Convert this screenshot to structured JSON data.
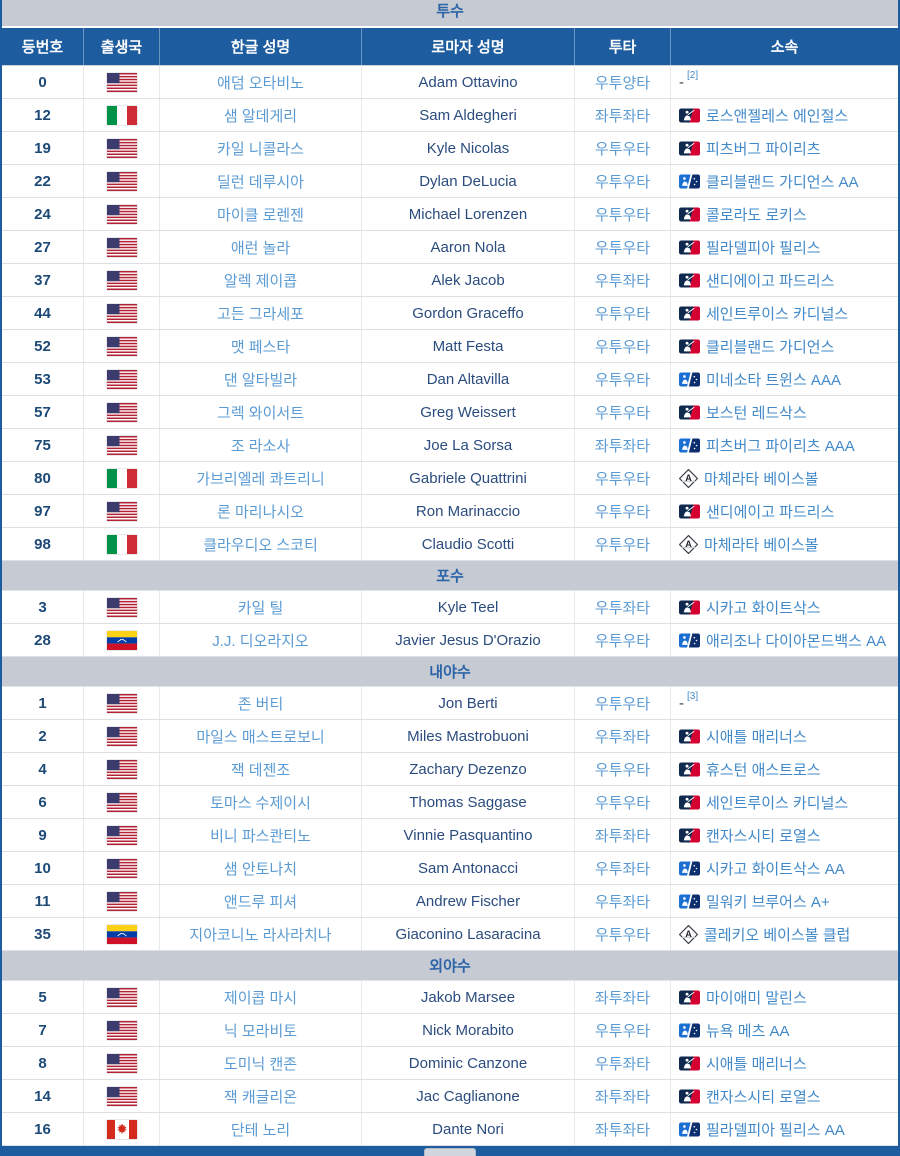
{
  "colors": {
    "accent": "#1d5c9f",
    "section_bg": "#c5cad3",
    "section_text": "#2d64a8",
    "link_light": "#5b9bd3",
    "link_affiliation": "#4289c9",
    "roman_text": "#2b4c7e",
    "number_text": "#1c4976"
  },
  "columns": [
    "등번호",
    "출생국",
    "한글 성명",
    "로마자 성명",
    "투타",
    "소속"
  ],
  "sections": [
    {
      "id": "pitchers",
      "label": "투수",
      "rows": [
        {
          "number": "0",
          "country": "us",
          "kor": "애덤 오타비노",
          "rom": "Adam Ottavino",
          "hand": "우투양타",
          "aff_logo": "none",
          "aff": "-",
          "footnote": "[2]"
        },
        {
          "number": "12",
          "country": "it",
          "kor": "샘 알데게리",
          "rom": "Sam Aldegheri",
          "hand": "좌투좌타",
          "aff_logo": "mlb",
          "aff": "로스앤젤레스 에인절스",
          "footnote": ""
        },
        {
          "number": "19",
          "country": "us",
          "kor": "카일 니콜라스",
          "rom": "Kyle Nicolas",
          "hand": "우투우타",
          "aff_logo": "mlb",
          "aff": "피츠버그 파이리츠",
          "footnote": ""
        },
        {
          "number": "22",
          "country": "us",
          "kor": "딜런 데루시아",
          "rom": "Dylan DeLucia",
          "hand": "우투우타",
          "aff_logo": "milb",
          "aff": "클리블랜드 가디언스 AA",
          "footnote": ""
        },
        {
          "number": "24",
          "country": "us",
          "kor": "마이클 로렌젠",
          "rom": "Michael Lorenzen",
          "hand": "우투우타",
          "aff_logo": "mlb",
          "aff": "콜로라도 로키스",
          "footnote": ""
        },
        {
          "number": "27",
          "country": "us",
          "kor": "애런 놀라",
          "rom": "Aaron Nola",
          "hand": "우투우타",
          "aff_logo": "mlb",
          "aff": "필라델피아 필리스",
          "footnote": ""
        },
        {
          "number": "37",
          "country": "us",
          "kor": "알렉 제이콥",
          "rom": "Alek Jacob",
          "hand": "우투좌타",
          "aff_logo": "mlb",
          "aff": "샌디에이고 파드리스",
          "footnote": ""
        },
        {
          "number": "44",
          "country": "us",
          "kor": "고든 그라세포",
          "rom": "Gordon Graceffo",
          "hand": "우투우타",
          "aff_logo": "mlb",
          "aff": "세인트루이스 카디널스",
          "footnote": ""
        },
        {
          "number": "52",
          "country": "us",
          "kor": "맷 페스타",
          "rom": "Matt Festa",
          "hand": "우투우타",
          "aff_logo": "mlb",
          "aff": "클리블랜드 가디언스",
          "footnote": ""
        },
        {
          "number": "53",
          "country": "us",
          "kor": "댄 알타빌라",
          "rom": "Dan Altavilla",
          "hand": "우투우타",
          "aff_logo": "milb",
          "aff": "미네소타 트윈스 AAA",
          "footnote": ""
        },
        {
          "number": "57",
          "country": "us",
          "kor": "그렉 와이서트",
          "rom": "Greg Weissert",
          "hand": "우투우타",
          "aff_logo": "mlb",
          "aff": "보스턴 레드삭스",
          "footnote": ""
        },
        {
          "number": "75",
          "country": "us",
          "kor": "조 라소사",
          "rom": "Joe La Sorsa",
          "hand": "좌투좌타",
          "aff_logo": "milb",
          "aff": "피츠버그 파이리츠 AAA",
          "footnote": ""
        },
        {
          "number": "80",
          "country": "it",
          "kor": "가브리엘레 콰트리니",
          "rom": "Gabriele Quattrini",
          "hand": "우투우타",
          "aff_logo": "club",
          "aff": "마체라타 베이스볼",
          "footnote": ""
        },
        {
          "number": "97",
          "country": "us",
          "kor": "론 마리나시오",
          "rom": "Ron Marinaccio",
          "hand": "우투우타",
          "aff_logo": "mlb",
          "aff": "샌디에이고 파드리스",
          "footnote": ""
        },
        {
          "number": "98",
          "country": "it",
          "kor": "클라우디오 스코티",
          "rom": "Claudio Scotti",
          "hand": "우투우타",
          "aff_logo": "club",
          "aff": "마체라타 베이스볼",
          "footnote": ""
        }
      ]
    },
    {
      "id": "catchers",
      "label": "포수",
      "rows": [
        {
          "number": "3",
          "country": "us",
          "kor": "카일 틸",
          "rom": "Kyle Teel",
          "hand": "우투좌타",
          "aff_logo": "mlb",
          "aff": "시카고 화이트삭스",
          "footnote": ""
        },
        {
          "number": "28",
          "country": "ve",
          "kor": "J.J. 디오라지오",
          "rom": "Javier Jesus D'Orazio",
          "hand": "우투우타",
          "aff_logo": "milb",
          "aff": "애리조나 다이아몬드백스 AA",
          "footnote": ""
        }
      ]
    },
    {
      "id": "infielders",
      "label": "내야수",
      "rows": [
        {
          "number": "1",
          "country": "us",
          "kor": "존 버티",
          "rom": "Jon Berti",
          "hand": "우투우타",
          "aff_logo": "none",
          "aff": "-",
          "footnote": "[3]"
        },
        {
          "number": "2",
          "country": "us",
          "kor": "마일스 매스트로보니",
          "rom": "Miles Mastrobuoni",
          "hand": "우투좌타",
          "aff_logo": "mlb",
          "aff": "시애틀 매리너스",
          "footnote": ""
        },
        {
          "number": "4",
          "country": "us",
          "kor": "잭 데젠조",
          "rom": "Zachary Dezenzo",
          "hand": "우투우타",
          "aff_logo": "mlb",
          "aff": "휴스턴 애스트로스",
          "footnote": ""
        },
        {
          "number": "6",
          "country": "us",
          "kor": "토마스 수제이시",
          "rom": "Thomas Saggase",
          "hand": "우투우타",
          "aff_logo": "mlb",
          "aff": "세인트루이스 카디널스",
          "footnote": ""
        },
        {
          "number": "9",
          "country": "us",
          "kor": "비니 파스콴티노",
          "rom": "Vinnie Pasquantino",
          "hand": "좌투좌타",
          "aff_logo": "mlb",
          "aff": "캔자스시티 로열스",
          "footnote": ""
        },
        {
          "number": "10",
          "country": "us",
          "kor": "샘 안토나치",
          "rom": "Sam Antonacci",
          "hand": "우투좌타",
          "aff_logo": "milb",
          "aff": "시카고 화이트삭스 AA",
          "footnote": ""
        },
        {
          "number": "11",
          "country": "us",
          "kor": "앤드루 피셔",
          "rom": "Andrew Fischer",
          "hand": "우투좌타",
          "aff_logo": "milb",
          "aff": "밀워키 브루어스 A+",
          "footnote": ""
        },
        {
          "number": "35",
          "country": "ve",
          "kor": "지아코니노 라사라치나",
          "rom": "Giaconino Lasaracina",
          "hand": "우투우타",
          "aff_logo": "club",
          "aff": "콜레키오 베이스볼 클럽",
          "footnote": ""
        }
      ]
    },
    {
      "id": "outfielders",
      "label": "외야수",
      "rows": [
        {
          "number": "5",
          "country": "us",
          "kor": "제이콥 마시",
          "rom": "Jakob Marsee",
          "hand": "좌투좌타",
          "aff_logo": "mlb",
          "aff": "마이애미 말린스",
          "footnote": ""
        },
        {
          "number": "7",
          "country": "us",
          "kor": "닉 모라비토",
          "rom": "Nick Morabito",
          "hand": "우투우타",
          "aff_logo": "milb",
          "aff": "뉴욕 메츠 AA",
          "footnote": ""
        },
        {
          "number": "8",
          "country": "us",
          "kor": "도미닉 캔존",
          "rom": "Dominic Canzone",
          "hand": "우투좌타",
          "aff_logo": "mlb",
          "aff": "시애틀 매리너스",
          "footnote": ""
        },
        {
          "number": "14",
          "country": "us",
          "kor": "잭 캐글리온",
          "rom": "Jac Caglianone",
          "hand": "좌투좌타",
          "aff_logo": "mlb",
          "aff": "캔자스시티 로열스",
          "footnote": ""
        },
        {
          "number": "16",
          "country": "ca",
          "kor": "단테 노리",
          "rom": "Dante Nori",
          "hand": "좌투좌타",
          "aff_logo": "milb",
          "aff": "필라델피아 필리스 AA",
          "footnote": ""
        }
      ]
    }
  ]
}
